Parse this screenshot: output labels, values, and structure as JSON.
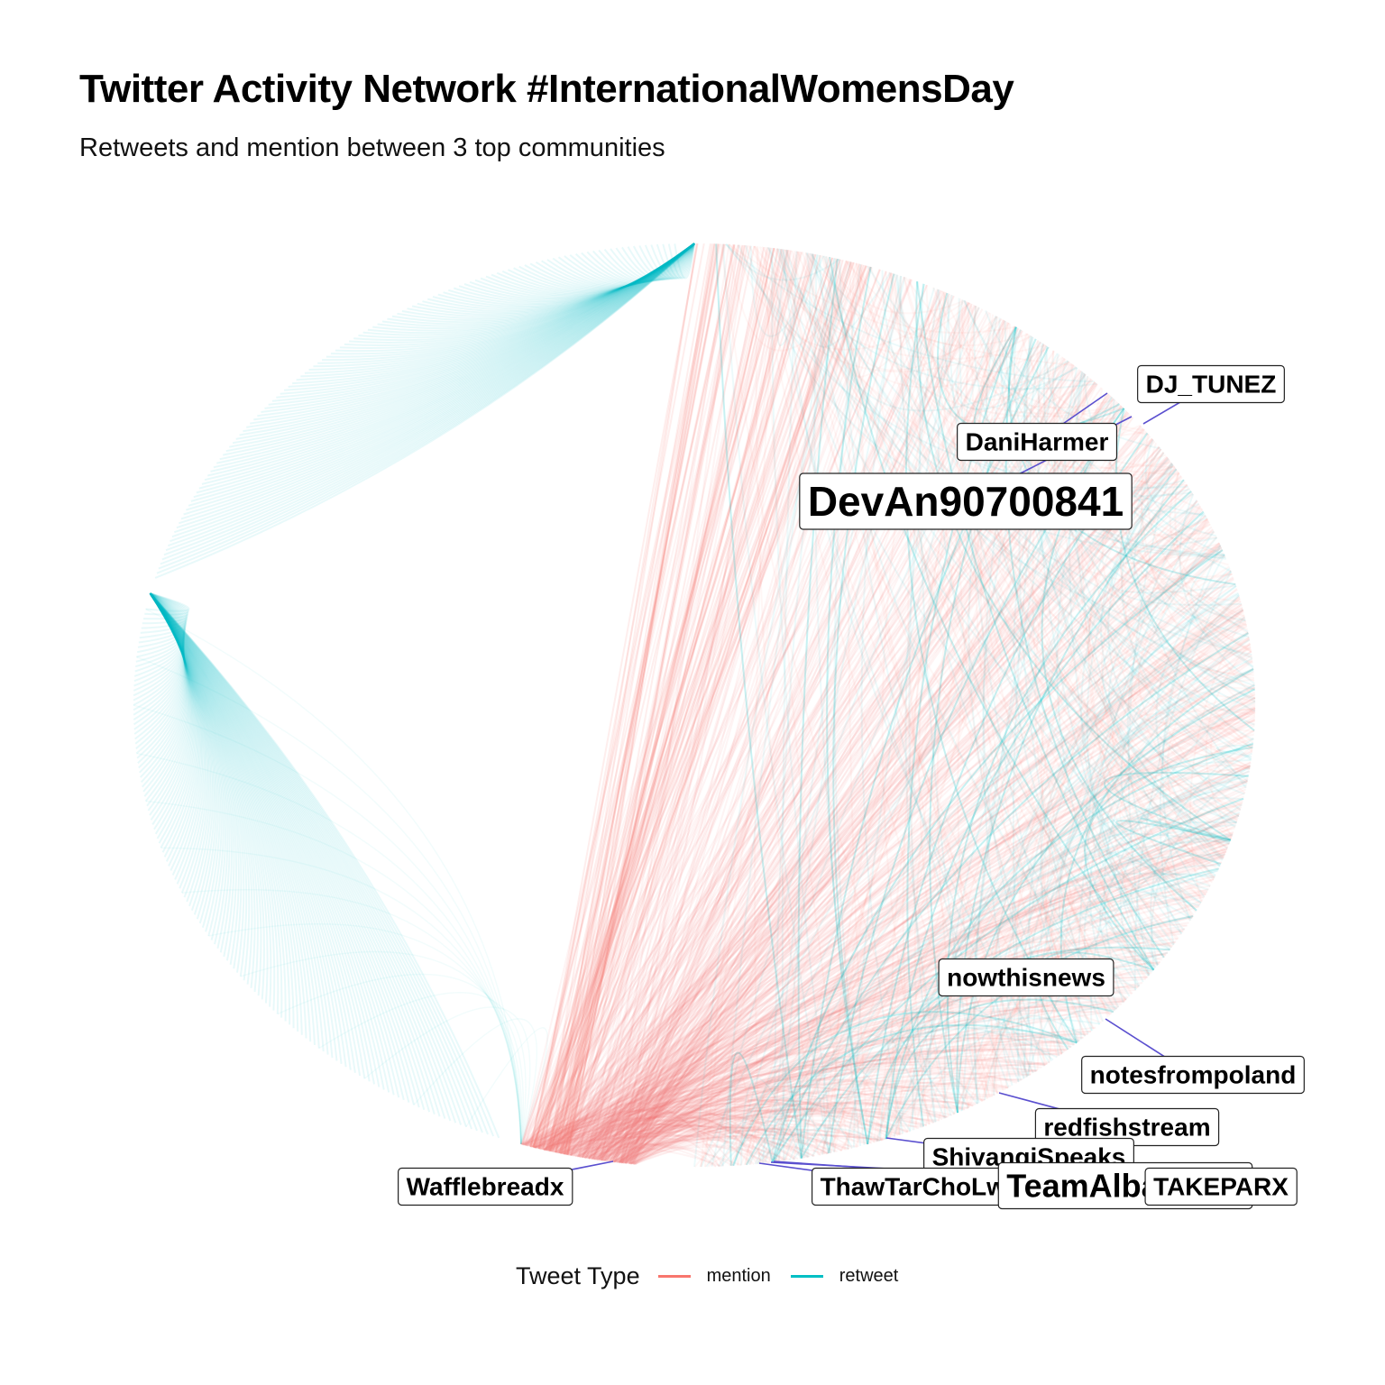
{
  "title": "Twitter Activity Network #InternationalWomensDay",
  "subtitle": "Retweets and mention between 3 top communities",
  "legend": {
    "title": "Tweet Type",
    "items": [
      {
        "label": "mention",
        "color": "#F8766D"
      },
      {
        "label": "retweet",
        "color": "#00BFC4"
      }
    ]
  },
  "colors": {
    "mention": "#F8766D",
    "retweet": "#00BFC4",
    "leader": "#5a4fcf"
  },
  "nodes": [
    {
      "label": "DJ_TUNEZ",
      "size": "small"
    },
    {
      "label": "DaniHarmer",
      "size": "small"
    },
    {
      "label": "DevAn90700841",
      "size": "large"
    },
    {
      "label": "nowthisnews",
      "size": "small"
    },
    {
      "label": "notesfrompoland",
      "size": "small"
    },
    {
      "label": "redfishstream",
      "size": "small"
    },
    {
      "label": "ShivangiSpeaks",
      "size": "small"
    },
    {
      "label": "Wafflebreadx",
      "size": "small"
    },
    {
      "label": "ThawTarChoLwin1",
      "size": "small"
    },
    {
      "label": "TeamAlbanians",
      "size": "medium"
    },
    {
      "label": "TAKEPARX",
      "size": "small"
    }
  ]
}
